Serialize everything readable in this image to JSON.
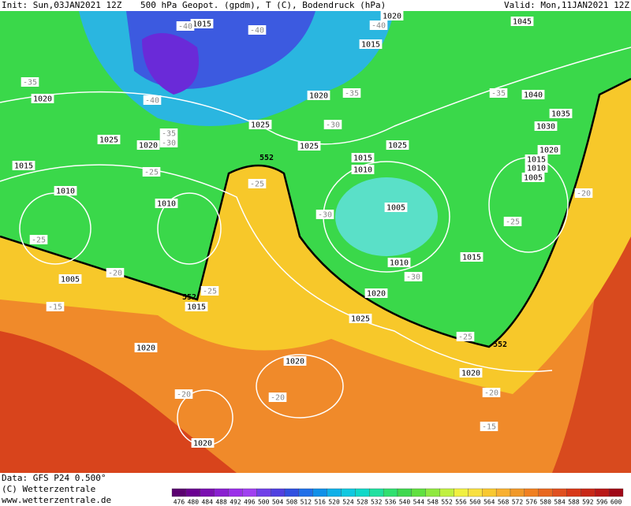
{
  "header": {
    "init": "Init: Sun,03JAN2021 12Z",
    "title": "500 hPa Geopot. (gpdm), T (C), Bodendruck (hPa)",
    "valid": "Valid: Mon,11JAN2021 12Z"
  },
  "footer": {
    "data": "Data: GFS P24 0.500°",
    "copyright": "(C) Wetterzentrale",
    "url": "www.wetterzentrale.de"
  },
  "pressure_labels": [
    "1015",
    "1020",
    "1045",
    "1015",
    "1020",
    "1020",
    "1040",
    "1035",
    "1025",
    "1030",
    "1025",
    "1020",
    "1025",
    "1025",
    "1020",
    "1015",
    "1015",
    "1015",
    "1010",
    "1010",
    "1005",
    "1010",
    "1010",
    "1005",
    "1015",
    "1010",
    "1005",
    "1015",
    "1020",
    "1025",
    "1020",
    "1020",
    "1020",
    "1020"
  ],
  "temperature_labels": [
    "-40",
    "-40",
    "-40",
    "-35",
    "-35",
    "-35",
    "-40",
    "-35",
    "-30",
    "-30",
    "-25",
    "-25",
    "-30",
    "-25",
    "-20",
    "-25",
    "-20",
    "-30",
    "-25",
    "-15",
    "-25",
    "-20",
    "-20",
    "-20",
    "-15"
  ],
  "height_labels": [
    "552",
    "552",
    "552"
  ],
  "color_scale": [
    476,
    480,
    484,
    488,
    492,
    496,
    500,
    504,
    508,
    512,
    516,
    520,
    524,
    528,
    532,
    536,
    540,
    544,
    548,
    552,
    556,
    560,
    564,
    568,
    572,
    576,
    580,
    584,
    588,
    592,
    596,
    600
  ]
}
